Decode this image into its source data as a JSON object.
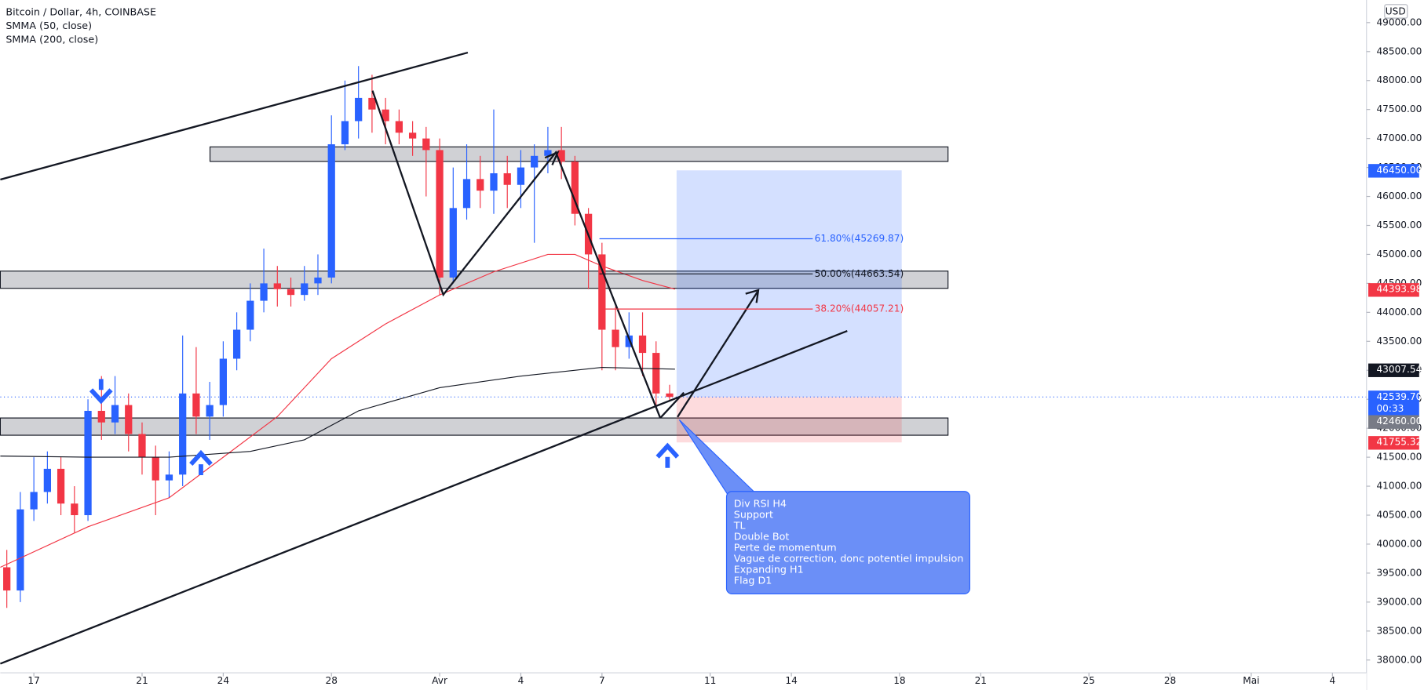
{
  "chart_data": {
    "type": "candlestick",
    "title": "Bitcoin / Dollar, 4h, COINBASE",
    "currency": "USD",
    "x": [
      -1,
      -0.5,
      0,
      0.5,
      1,
      1.5,
      2,
      2.5,
      3,
      3.5,
      4,
      4.5,
      5,
      5.5,
      6,
      6.5,
      7,
      7.5,
      8,
      8.5,
      9,
      9.5,
      10,
      10.5,
      11,
      11.5,
      12,
      12.5,
      13,
      13.5,
      14,
      14.5,
      15,
      15.5,
      16,
      16.5,
      17,
      17.5,
      18,
      18.5,
      19,
      19.5,
      20,
      20.5,
      21,
      21.5,
      22,
      22.5,
      23,
      23.5
    ],
    "open": [
      39600,
      39200,
      40600,
      40900,
      41300,
      40700,
      40500,
      42300,
      42100,
      42400,
      41900,
      41500,
      41100,
      41200,
      42600,
      42200,
      42400,
      43200,
      43700,
      44200,
      44500,
      44400,
      44300,
      44500,
      44600,
      46900,
      47300,
      47700,
      47500,
      47300,
      47100,
      47000,
      46800,
      44600,
      45800,
      46300,
      46100,
      46400,
      46200,
      46500,
      46700,
      46800,
      46600,
      45700,
      45000,
      43700,
      43400,
      43600,
      43300,
      42600
    ],
    "high": [
      39900,
      40900,
      41500,
      41600,
      41500,
      41000,
      42500,
      42900,
      42900,
      42600,
      42100,
      41700,
      41600,
      43600,
      43400,
      42800,
      43500,
      44000,
      44500,
      45100,
      44800,
      44600,
      44800,
      45000,
      47400,
      48000,
      48250,
      48100,
      47700,
      47500,
      47300,
      47200,
      47000,
      46500,
      46900,
      46700,
      47500,
      46700,
      46800,
      46900,
      47200,
      47200,
      46700,
      45800,
      45200,
      44100,
      44000,
      44000,
      43500,
      42750
    ],
    "low": [
      38900,
      39000,
      40400,
      40700,
      40500,
      40200,
      40400,
      41800,
      41900,
      41600,
      41200,
      40500,
      40800,
      41000,
      41900,
      41800,
      42200,
      43000,
      43500,
      44000,
      44100,
      44100,
      44200,
      44300,
      44500,
      46800,
      47000,
      47100,
      46900,
      46900,
      46700,
      46000,
      44300,
      44500,
      45600,
      45800,
      45700,
      45800,
      45800,
      45200,
      46400,
      46300,
      45500,
      44400,
      43000,
      43000,
      43200,
      42900,
      42400,
      42460
    ],
    "close": [
      39200,
      40600,
      40900,
      41300,
      40700,
      40500,
      42300,
      42100,
      42400,
      41900,
      41500,
      41100,
      41200,
      42600,
      42200,
      42400,
      43200,
      43700,
      44200,
      44500,
      44400,
      44300,
      44500,
      44600,
      46900,
      47300,
      47700,
      47500,
      47300,
      47100,
      47000,
      46800,
      44600,
      45800,
      46300,
      46100,
      46400,
      46200,
      46500,
      46700,
      46800,
      46600,
      45700,
      45000,
      43700,
      43400,
      43600,
      43300,
      42600,
      42540
    ],
    "up_color": "#2962ff",
    "down_color": "#f23645",
    "lines": [
      {
        "name": "SMMA (50, close)",
        "color": "#f23645",
        "x": [
          -1.24,
          2,
          5,
          7,
          9,
          11,
          13,
          15,
          17,
          19,
          20,
          21,
          22.5,
          23.7
        ],
        "values": [
          39600,
          40300,
          40800,
          41500,
          42200,
          43200,
          43800,
          44300,
          44700,
          45000,
          45000,
          44800,
          44550,
          44400
        ]
      },
      {
        "name": "SMMA (200, close)",
        "color": "#131722",
        "x": [
          -1.24,
          2,
          5,
          8,
          10,
          12,
          15,
          18,
          21,
          23.7
        ],
        "values": [
          41520,
          41500,
          41500,
          41600,
          41800,
          42300,
          42700,
          42900,
          43050,
          43020
        ]
      }
    ],
    "xlim": [
      -1.24,
      49.26
    ],
    "xticks": [
      {
        "value": 0,
        "label": "17"
      },
      {
        "value": 4,
        "label": "21"
      },
      {
        "value": 7,
        "label": "24"
      },
      {
        "value": 11,
        "label": "28"
      },
      {
        "value": 15,
        "label": "Avr"
      },
      {
        "value": 18,
        "label": "4"
      },
      {
        "value": 21,
        "label": "7"
      },
      {
        "value": 25,
        "label": "11"
      },
      {
        "value": 28,
        "label": "14"
      },
      {
        "value": 32,
        "label": "18"
      },
      {
        "value": 35,
        "label": "21"
      },
      {
        "value": 39,
        "label": "25"
      },
      {
        "value": 42,
        "label": "28"
      },
      {
        "value": 45,
        "label": "Mai"
      },
      {
        "value": 48,
        "label": "4"
      }
    ],
    "ylim": [
      37780,
      49390
    ],
    "yticks": [
      {
        "value": 38000,
        "label": "38000.00"
      },
      {
        "value": 38500,
        "label": "38500.00"
      },
      {
        "value": 39000,
        "label": "39000.00"
      },
      {
        "value": 39500,
        "label": "39500.00"
      },
      {
        "value": 40000,
        "label": "40000.00"
      },
      {
        "value": 40500,
        "label": "40500.00"
      },
      {
        "value": 41000,
        "label": "41000.00"
      },
      {
        "value": 41500,
        "label": "41500.00"
      },
      {
        "value": 42000,
        "label": "42000.00"
      },
      {
        "value": 42500,
        "label": "42500.00"
      },
      {
        "value": 43000,
        "label": "43000.00"
      },
      {
        "value": 43500,
        "label": "43500.00"
      },
      {
        "value": 44000,
        "label": "44000.00"
      },
      {
        "value": 44500,
        "label": "44500.00"
      },
      {
        "value": 45000,
        "label": "45000.00"
      },
      {
        "value": 45500,
        "label": "45500.00"
      },
      {
        "value": 46000,
        "label": "46000.00"
      },
      {
        "value": 46500,
        "label": "46500.00"
      },
      {
        "value": 47000,
        "label": "47000.00"
      },
      {
        "value": 47500,
        "label": "47500.00"
      },
      {
        "value": 48000,
        "label": "48000.00"
      },
      {
        "value": 48500,
        "label": "48500.00"
      },
      {
        "value": 49000,
        "label": "49000.00"
      }
    ],
    "fib_levels": [
      {
        "value": 45269.87,
        "label": "61.80%(45269.87)",
        "color": "#2962ff"
      },
      {
        "value": 44663.54,
        "label": "50.00%(44663.54)",
        "color": "#131722"
      },
      {
        "value": 44057.21,
        "label": "38.20%(44057.21)",
        "color": "#f23645"
      }
    ],
    "price_badges": [
      {
        "value": 46450,
        "label": "46450.00",
        "color": "#2962ff"
      },
      {
        "value": 44393.98,
        "label": "44393.98",
        "color": "#f23645"
      },
      {
        "value": 43007.54,
        "label": "43007.54",
        "color": "#131722"
      },
      {
        "value": 42539.7,
        "label": "42539.70",
        "color": "#2962ff"
      },
      {
        "value": 42460,
        "label": "42460.00",
        "color": "#787b86"
      },
      {
        "value": 41755.32,
        "label": "41755.32",
        "color": "#f23645"
      }
    ],
    "countdown": "00:33",
    "annotation": [
      "Div RSI H4",
      "Support",
      "TL",
      "Double Bot",
      "Perte de momentum",
      "Vague de correction, donc potentiel impulsion",
      "Expanding H1",
      "Flag D1"
    ]
  }
}
